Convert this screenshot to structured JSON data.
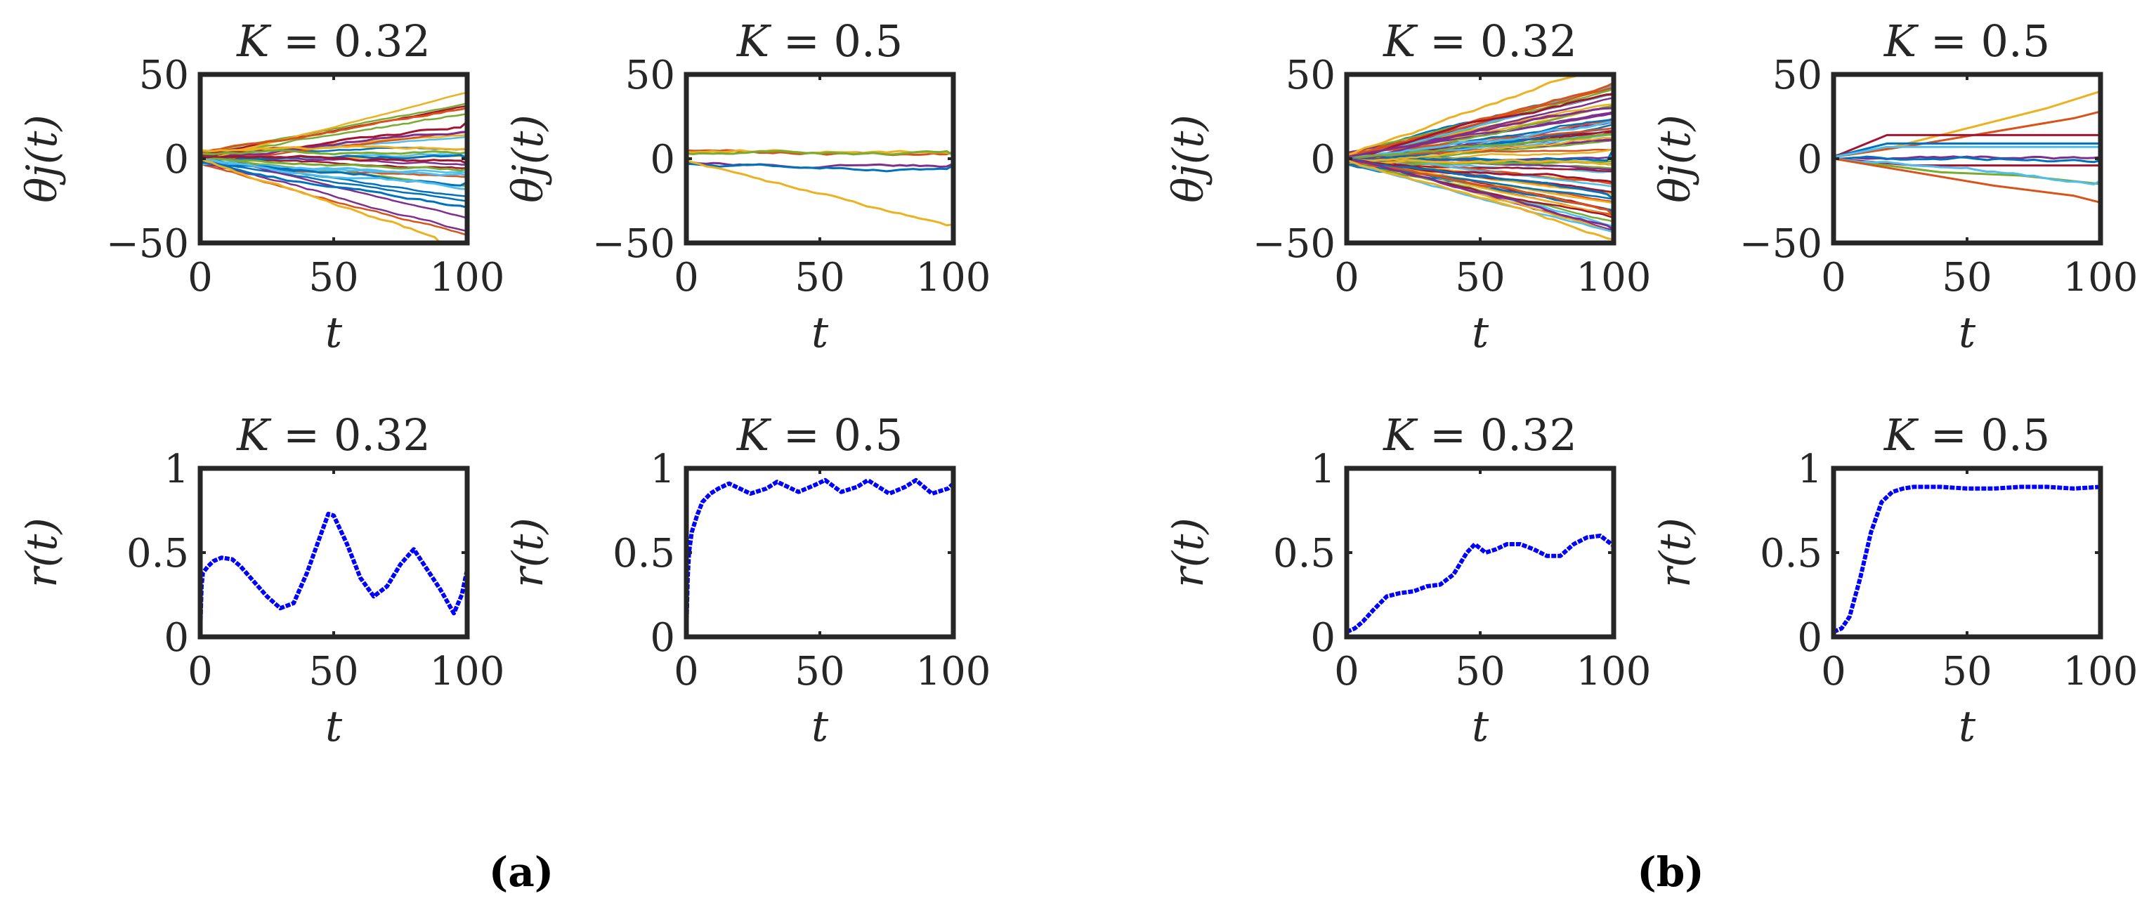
{
  "figure": {
    "panel_labels": [
      "(a)",
      "(b)"
    ]
  },
  "chart_data": [
    {
      "id": "a-theta-K032",
      "type": "line",
      "title": "K = 0.32",
      "xlabel": "t",
      "ylabel": "θj(t)",
      "xlim": [
        0,
        100
      ],
      "ylim": [
        -50,
        50
      ],
      "xticks": [
        0,
        50,
        100
      ],
      "yticks": [
        -50,
        0,
        50
      ],
      "ytick_labels": [
        "−50",
        "0",
        "50"
      ],
      "trajectories": {
        "count": 20,
        "seed": 11,
        "description": ""
      },
      "series": [
        {
          "color": "#D95319",
          "x": [
            0,
            100
          ],
          "y": [
            4,
            30
          ]
        },
        {
          "color": "#A2142F",
          "x": [
            0,
            100
          ],
          "y": [
            2,
            22
          ]
        },
        {
          "color": "#7E2F8E",
          "x": [
            0,
            100
          ],
          "y": [
            1,
            16
          ]
        },
        {
          "color": "#EDB120",
          "x": [
            0,
            100
          ],
          "y": [
            5,
            6
          ]
        },
        {
          "color": "#77AC30",
          "x": [
            0,
            100
          ],
          "y": [
            3,
            4
          ]
        },
        {
          "color": "#0072BD",
          "x": [
            0,
            100
          ],
          "y": [
            0,
            0
          ]
        },
        {
          "color": "#A2142F",
          "x": [
            0,
            100
          ],
          "y": [
            1,
            -3
          ]
        },
        {
          "color": "#77AC30",
          "x": [
            0,
            100
          ],
          "y": [
            0,
            -6
          ]
        },
        {
          "color": "#4DBEEE",
          "x": [
            0,
            100
          ],
          "y": [
            -1,
            -10
          ]
        },
        {
          "color": "#0072BD",
          "x": [
            0,
            100
          ],
          "y": [
            -2,
            -14
          ]
        },
        {
          "color": "#4DBEEE",
          "x": [
            0,
            100
          ],
          "y": [
            0,
            -18
          ]
        },
        {
          "color": "#0072BD",
          "x": [
            0,
            100
          ],
          "y": [
            -1,
            -29
          ]
        },
        {
          "color": "#EDB120",
          "x": [
            0,
            90
          ],
          "y": [
            0,
            -50
          ]
        }
      ]
    },
    {
      "id": "a-theta-K05",
      "type": "line",
      "title": "K = 0.5",
      "xlabel": "t",
      "ylabel": "θj(t)",
      "xlim": [
        0,
        100
      ],
      "ylim": [
        -50,
        50
      ],
      "xticks": [
        0,
        50,
        100
      ],
      "yticks": [
        -50,
        0,
        50
      ],
      "ytick_labels": [
        "−50",
        "0",
        "50"
      ],
      "series": [
        {
          "color": "#D95319",
          "x": [
            0,
            100
          ],
          "y": [
            5,
            4
          ]
        },
        {
          "color": "#EDB120",
          "x": [
            0,
            100
          ],
          "y": [
            4,
            3
          ]
        },
        {
          "color": "#77AC30",
          "x": [
            0,
            100
          ],
          "y": [
            3,
            2
          ]
        },
        {
          "color": "#7E2F8E",
          "x": [
            0,
            100
          ],
          "y": [
            -2,
            -3
          ]
        },
        {
          "color": "#0072BD",
          "x": [
            0,
            100
          ],
          "y": [
            -3,
            -4
          ]
        },
        {
          "color": "#EDB120",
          "x": [
            0,
            100
          ],
          "y": [
            -1,
            -39
          ]
        }
      ]
    },
    {
      "id": "a-r-K032",
      "type": "line",
      "title": "K = 0.32",
      "xlabel": "t",
      "ylabel": "r(t)",
      "xlim": [
        0,
        100
      ],
      "ylim": [
        0,
        1
      ],
      "xticks": [
        0,
        50,
        100
      ],
      "yticks": [
        0,
        0.5,
        1
      ],
      "ytick_labels": [
        "0",
        "0.5",
        "1"
      ],
      "series": [
        {
          "color": "#0000FF",
          "x": [
            0,
            0.5,
            1,
            3,
            5,
            8,
            12,
            15,
            20,
            25,
            30,
            35,
            40,
            45,
            48,
            50,
            55,
            60,
            65,
            70,
            75,
            80,
            85,
            90,
            95,
            98,
            100
          ],
          "y": [
            0.02,
            0.3,
            0.38,
            0.42,
            0.45,
            0.47,
            0.46,
            0.42,
            0.33,
            0.24,
            0.17,
            0.2,
            0.38,
            0.6,
            0.73,
            0.72,
            0.55,
            0.35,
            0.24,
            0.3,
            0.43,
            0.52,
            0.4,
            0.28,
            0.14,
            0.25,
            0.4
          ]
        }
      ]
    },
    {
      "id": "a-r-K05",
      "type": "line",
      "title": "K = 0.5",
      "xlabel": "t",
      "ylabel": "r(t)",
      "xlim": [
        0,
        100
      ],
      "ylim": [
        0,
        1
      ],
      "xticks": [
        0,
        50,
        100
      ],
      "yticks": [
        0,
        0.5,
        1
      ],
      "ytick_labels": [
        "0",
        "0.5",
        "1"
      ],
      "series": [
        {
          "color": "#0000FF",
          "x": [
            0,
            0.5,
            1,
            2,
            4,
            6,
            9,
            12,
            16,
            24,
            30,
            34,
            42,
            48,
            52,
            58,
            64,
            68,
            76,
            82,
            86,
            92,
            98,
            100
          ],
          "y": [
            0.02,
            0.35,
            0.5,
            0.62,
            0.72,
            0.8,
            0.85,
            0.88,
            0.91,
            0.85,
            0.88,
            0.92,
            0.86,
            0.9,
            0.93,
            0.86,
            0.89,
            0.93,
            0.85,
            0.89,
            0.93,
            0.85,
            0.88,
            0.91
          ]
        }
      ]
    },
    {
      "id": "b-theta-K032",
      "type": "line",
      "title": "K = 0.32",
      "xlabel": "t",
      "ylabel": "θj(t)",
      "xlim": [
        0,
        100
      ],
      "ylim": [
        -50,
        50
      ],
      "xticks": [
        0,
        50,
        100
      ],
      "yticks": [
        -50,
        0,
        50
      ],
      "ytick_labels": [
        "−50",
        "0",
        "50"
      ],
      "trajectories": {
        "count": 60,
        "seed": 29,
        "description": ""
      },
      "series": [
        {
          "color": "#EDB120",
          "x": [
            0,
            90
          ],
          "y": [
            2,
            50
          ]
        },
        {
          "color": "#D95319",
          "x": [
            0,
            100
          ],
          "y": [
            1,
            45
          ]
        },
        {
          "color": "#A2142F",
          "x": [
            0,
            100
          ],
          "y": [
            0,
            38
          ]
        },
        {
          "color": "#7E2F8E",
          "x": [
            0,
            100
          ],
          "y": [
            1,
            30
          ]
        },
        {
          "color": "#4DBEEE",
          "x": [
            0,
            100
          ],
          "y": [
            0,
            22
          ]
        },
        {
          "color": "#77AC30",
          "x": [
            0,
            100
          ],
          "y": [
            0,
            14
          ]
        },
        {
          "color": "#0072BD",
          "x": [
            0,
            100
          ],
          "y": [
            0,
            6
          ]
        },
        {
          "color": "#EDB120",
          "x": [
            0,
            100
          ],
          "y": [
            0,
            -4
          ]
        },
        {
          "color": "#A2142F",
          "x": [
            0,
            100
          ],
          "y": [
            0,
            -14
          ]
        },
        {
          "color": "#0072BD",
          "x": [
            0,
            100
          ],
          "y": [
            0,
            -24
          ]
        },
        {
          "color": "#D95319",
          "x": [
            0,
            100
          ],
          "y": [
            -1,
            -34
          ]
        },
        {
          "color": "#7E2F8E",
          "x": [
            0,
            100
          ],
          "y": [
            0,
            -42
          ]
        },
        {
          "color": "#EDB120",
          "x": [
            0,
            100
          ],
          "y": [
            -1,
            -48
          ]
        }
      ]
    },
    {
      "id": "b-theta-K05",
      "type": "line",
      "title": "K = 0.5",
      "xlabel": "t",
      "ylabel": "θj(t)",
      "xlim": [
        0,
        100
      ],
      "ylim": [
        -50,
        50
      ],
      "xticks": [
        0,
        50,
        100
      ],
      "yticks": [
        -50,
        0,
        50
      ],
      "ytick_labels": [
        "−50",
        "0",
        "50"
      ],
      "series": [
        {
          "color": "#EDB120",
          "x": [
            0,
            20,
            40,
            60,
            80,
            100
          ],
          "y": [
            2,
            6,
            14,
            22,
            30,
            40
          ]
        },
        {
          "color": "#D95319",
          "x": [
            0,
            30,
            60,
            90,
            100
          ],
          "y": [
            1,
            8,
            16,
            24,
            28
          ]
        },
        {
          "color": "#A2142F",
          "x": [
            0,
            20,
            100
          ],
          "y": [
            1,
            14,
            14
          ]
        },
        {
          "color": "#0072BD",
          "x": [
            0,
            20,
            100
          ],
          "y": [
            1,
            9,
            9
          ]
        },
        {
          "color": "#4DBEEE",
          "x": [
            0,
            20,
            100
          ],
          "y": [
            1,
            7,
            7
          ]
        },
        {
          "color": "#7E2F8E",
          "x": [
            0,
            100
          ],
          "y": [
            0,
            1
          ]
        },
        {
          "color": "#0072BD",
          "x": [
            0,
            100
          ],
          "y": [
            0,
            -1
          ]
        },
        {
          "color": "#A2142F",
          "x": [
            0,
            30,
            100
          ],
          "y": [
            0,
            -4,
            -4
          ]
        },
        {
          "color": "#77AC30",
          "x": [
            0,
            40,
            70,
            100
          ],
          "y": [
            0,
            -8,
            -10,
            -15
          ]
        },
        {
          "color": "#4DBEEE",
          "x": [
            0,
            100
          ],
          "y": [
            0,
            -13
          ]
        },
        {
          "color": "#D95319",
          "x": [
            0,
            30,
            60,
            90,
            100
          ],
          "y": [
            0,
            -8,
            -16,
            -22,
            -26
          ]
        }
      ]
    },
    {
      "id": "b-r-K032",
      "type": "line",
      "title": "K = 0.32",
      "xlabel": "t",
      "ylabel": "r(t)",
      "xlim": [
        0,
        100
      ],
      "ylim": [
        0,
        1
      ],
      "xticks": [
        0,
        50,
        100
      ],
      "yticks": [
        0,
        0.5,
        1
      ],
      "ytick_labels": [
        "0",
        "0.5",
        "1"
      ],
      "series": [
        {
          "color": "#0000FF",
          "x": [
            0,
            3,
            6,
            10,
            15,
            20,
            25,
            30,
            35,
            40,
            45,
            48,
            52,
            56,
            60,
            65,
            70,
            75,
            80,
            85,
            90,
            95,
            100
          ],
          "y": [
            0.03,
            0.05,
            0.09,
            0.16,
            0.24,
            0.26,
            0.27,
            0.3,
            0.31,
            0.37,
            0.5,
            0.55,
            0.5,
            0.52,
            0.55,
            0.55,
            0.52,
            0.48,
            0.48,
            0.55,
            0.59,
            0.6,
            0.54
          ]
        }
      ]
    },
    {
      "id": "b-r-K05",
      "type": "line",
      "title": "K = 0.5",
      "xlabel": "t",
      "ylabel": "r(t)",
      "xlim": [
        0,
        100
      ],
      "ylim": [
        0,
        1
      ],
      "xticks": [
        0,
        50,
        100
      ],
      "yticks": [
        0,
        0.5,
        1
      ],
      "ytick_labels": [
        "0",
        "0.5",
        "1"
      ],
      "series": [
        {
          "color": "#0000FF",
          "x": [
            0,
            3,
            6,
            10,
            14,
            18,
            22,
            26,
            30,
            40,
            50,
            60,
            70,
            80,
            90,
            100
          ],
          "y": [
            0.03,
            0.05,
            0.12,
            0.35,
            0.62,
            0.8,
            0.86,
            0.88,
            0.89,
            0.89,
            0.88,
            0.88,
            0.89,
            0.89,
            0.88,
            0.89
          ]
        }
      ]
    }
  ]
}
